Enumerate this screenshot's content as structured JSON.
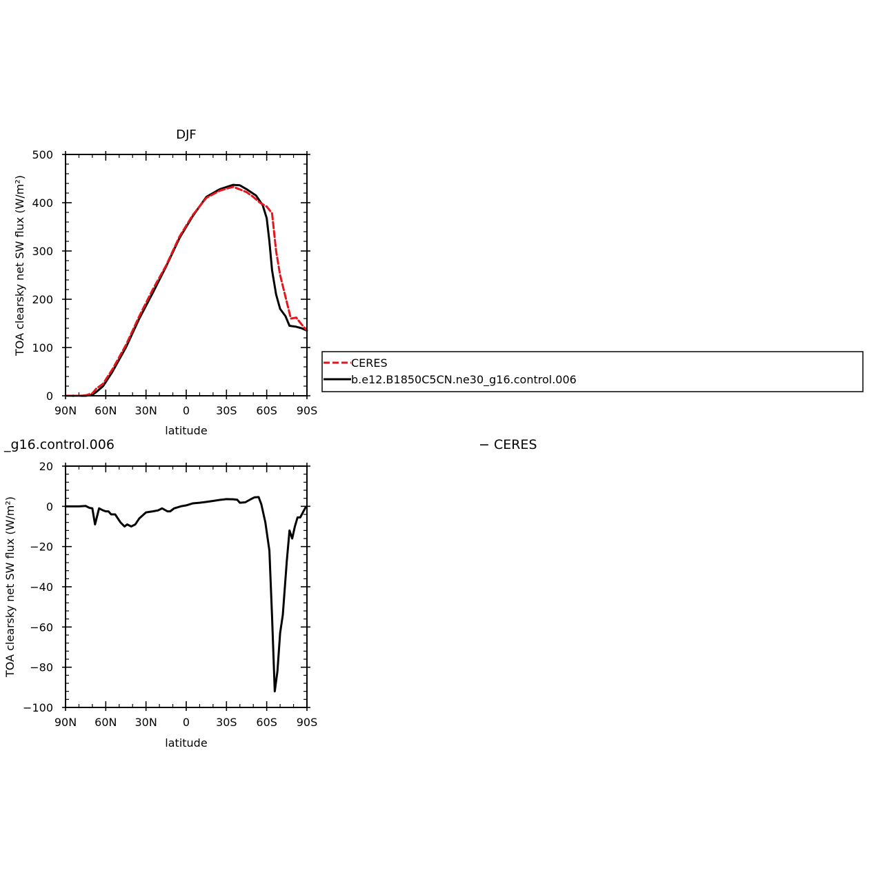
{
  "figure": {
    "top_title": "DJF",
    "bottom_title_left": "_g16.control.006",
    "bottom_title_right": "− CERES",
    "legend_entries": [
      "CERES",
      "b.e12.B1850C5CN.ne30_g16.control.006"
    ]
  },
  "colors": {
    "ceres": "#e8141c",
    "model": "#000000",
    "diff": "#000000"
  },
  "chart_data": [
    {
      "type": "line",
      "title": "DJF",
      "xlabel": "latitude",
      "ylabel": "TOA clearsky net SW flux (W/m²)",
      "xlim": [
        -90,
        90
      ],
      "ylim": [
        0,
        500
      ],
      "xticks": [
        -90,
        -60,
        -30,
        0,
        30,
        60,
        90
      ],
      "xtick_labels": [
        "90N",
        "60N",
        "30N",
        "0",
        "30S",
        "60S",
        "90S"
      ],
      "yticks": [
        0,
        100,
        200,
        300,
        400,
        500
      ],
      "ytick_labels": [
        "0",
        "100",
        "200",
        "300",
        "400",
        "500"
      ],
      "legend": "right",
      "series": [
        {
          "name": "CERES",
          "style": "dashed",
          "points": [
            [
              -90,
              0
            ],
            [
              -85,
              0
            ],
            [
              -80,
              0
            ],
            [
              -75,
              1
            ],
            [
              -70,
              5
            ],
            [
              -67,
              15
            ],
            [
              -62,
              25
            ],
            [
              -55,
              55
            ],
            [
              -45,
              105
            ],
            [
              -35,
              165
            ],
            [
              -25,
              220
            ],
            [
              -15,
              270
            ],
            [
              -5,
              330
            ],
            [
              5,
              375
            ],
            [
              15,
              410
            ],
            [
              25,
              425
            ],
            [
              35,
              433
            ],
            [
              45,
              422
            ],
            [
              50,
              412
            ],
            [
              55,
              400
            ],
            [
              60,
              392
            ],
            [
              64,
              378
            ],
            [
              67,
              300
            ],
            [
              70,
              250
            ],
            [
              74,
              205
            ],
            [
              78,
              160
            ],
            [
              82,
              162
            ],
            [
              86,
              148
            ],
            [
              90,
              135
            ]
          ]
        },
        {
          "name": "b.e12.B1850C5CN.ne30_g16.control.006",
          "style": "solid",
          "points": [
            [
              -90,
              0
            ],
            [
              -85,
              0
            ],
            [
              -80,
              0
            ],
            [
              -75,
              0
            ],
            [
              -70,
              2
            ],
            [
              -67,
              8
            ],
            [
              -62,
              20
            ],
            [
              -55,
              50
            ],
            [
              -45,
              100
            ],
            [
              -35,
              160
            ],
            [
              -25,
              213
            ],
            [
              -15,
              268
            ],
            [
              -5,
              327
            ],
            [
              5,
              373
            ],
            [
              15,
              412
            ],
            [
              25,
              428
            ],
            [
              35,
              437
            ],
            [
              40,
              436
            ],
            [
              45,
              428
            ],
            [
              52,
              415
            ],
            [
              57,
              395
            ],
            [
              60,
              368
            ],
            [
              62,
              320
            ],
            [
              64,
              260
            ],
            [
              67,
              210
            ],
            [
              70,
              180
            ],
            [
              74,
              165
            ],
            [
              77,
              145
            ],
            [
              82,
              143
            ],
            [
              86,
              140
            ],
            [
              90,
              135
            ]
          ]
        }
      ]
    },
    {
      "type": "line",
      "title": "_g16.control.006 − CERES",
      "xlabel": "latitude",
      "ylabel": "TOA clearsky net SW flux (W/m²)",
      "xlim": [
        -90,
        90
      ],
      "ylim": [
        -100,
        20
      ],
      "xticks": [
        -90,
        -60,
        -30,
        0,
        30,
        60,
        90
      ],
      "xtick_labels": [
        "90N",
        "60N",
        "30N",
        "0",
        "30S",
        "60S",
        "90S"
      ],
      "yticks": [
        -100,
        -80,
        -60,
        -40,
        -20,
        0,
        20
      ],
      "ytick_labels": [
        "−100",
        "−80",
        "−60",
        "−40",
        "−20",
        "0",
        "20"
      ],
      "series": [
        {
          "style": "solid",
          "points": [
            [
              -90,
              0
            ],
            [
              -80,
              0
            ],
            [
              -75,
              0.2
            ],
            [
              -72,
              -0.8
            ],
            [
              -70,
              -1
            ],
            [
              -68,
              -9
            ],
            [
              -65,
              -1
            ],
            [
              -62,
              -2
            ],
            [
              -60,
              -2.5
            ],
            [
              -58,
              -2.5
            ],
            [
              -56,
              -4
            ],
            [
              -53,
              -4
            ],
            [
              -49,
              -8
            ],
            [
              -46,
              -10
            ],
            [
              -44,
              -9
            ],
            [
              -41,
              -10
            ],
            [
              -38,
              -9
            ],
            [
              -35,
              -6
            ],
            [
              -30,
              -3
            ],
            [
              -25,
              -2.5
            ],
            [
              -21,
              -2
            ],
            [
              -18,
              -1
            ],
            [
              -14,
              -2.5
            ],
            [
              -12,
              -2.5
            ],
            [
              -9,
              -1
            ],
            [
              -4,
              0
            ],
            [
              0,
              0.5
            ],
            [
              5,
              1.5
            ],
            [
              10,
              1.8
            ],
            [
              15,
              2.2
            ],
            [
              20,
              2.7
            ],
            [
              25,
              3.2
            ],
            [
              30,
              3.6
            ],
            [
              35,
              3.5
            ],
            [
              38,
              3.3
            ],
            [
              40,
              1.8
            ],
            [
              44,
              2
            ],
            [
              48,
              3.5
            ],
            [
              51,
              4.5
            ],
            [
              54,
              4.6
            ],
            [
              56,
              1
            ],
            [
              59,
              -8
            ],
            [
              62,
              -22
            ],
            [
              64,
              -55
            ],
            [
              66,
              -92
            ],
            [
              68,
              -82
            ],
            [
              70,
              -63
            ],
            [
              72,
              -54
            ],
            [
              75,
              -27
            ],
            [
              77,
              -12
            ],
            [
              79,
              -16
            ],
            [
              81,
              -10
            ],
            [
              83,
              -5.5
            ],
            [
              85,
              -5.5
            ],
            [
              87,
              -3
            ],
            [
              89,
              -0.5
            ],
            [
              90,
              0
            ]
          ]
        }
      ]
    }
  ]
}
